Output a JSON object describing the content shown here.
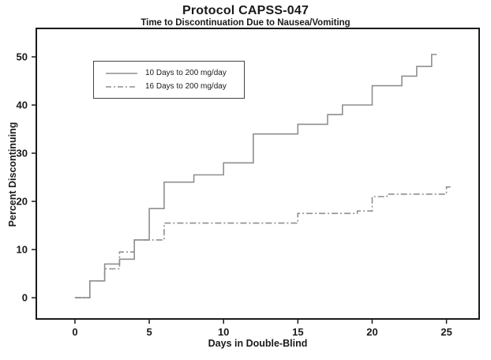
{
  "figure": {
    "background": "#ffffff",
    "axis_color": "#1a1a1a",
    "line_color": "#8f8f8f"
  },
  "chart_data": {
    "type": "line",
    "step": true,
    "title": "Protocol CAPSS-047",
    "subtitle": "Time to Discontinuation Due to Nausea/Vomiting",
    "xlabel": "Days in Double-Blind",
    "ylabel": "Percent Discontinuing",
    "xlim": [
      -2.6,
      27.2
    ],
    "ylim": [
      -4.4,
      55.9
    ],
    "xticks": [
      0,
      5,
      10,
      15,
      20,
      25
    ],
    "yticks": [
      0,
      10,
      20,
      30,
      40,
      50
    ],
    "grid": false,
    "legend_position": "upper-left-inside",
    "series": [
      {
        "name": "10 Days to 200 mg/day",
        "style": "solid",
        "color": "#8f8f8f",
        "points": [
          [
            0,
            0
          ],
          [
            1,
            3.5
          ],
          [
            2,
            7
          ],
          [
            3,
            8
          ],
          [
            4,
            12
          ],
          [
            5,
            18.5
          ],
          [
            6,
            24
          ],
          [
            8,
            25.5
          ],
          [
            10,
            28
          ],
          [
            12,
            34
          ],
          [
            15,
            36
          ],
          [
            17,
            38
          ],
          [
            18,
            40
          ],
          [
            20,
            44
          ],
          [
            22,
            46
          ],
          [
            23,
            48
          ],
          [
            24,
            50.5
          ]
        ]
      },
      {
        "name": "16 Days to 200 mg/day",
        "style": "dash-dot",
        "color": "#8f8f8f",
        "points": [
          [
            0,
            0
          ],
          [
            1,
            3.5
          ],
          [
            2,
            6
          ],
          [
            3,
            9.5
          ],
          [
            4,
            12
          ],
          [
            6,
            15.5
          ],
          [
            15,
            17.5
          ],
          [
            19,
            18
          ],
          [
            20,
            21
          ],
          [
            21,
            21.5
          ],
          [
            25,
            23
          ]
        ]
      }
    ]
  }
}
